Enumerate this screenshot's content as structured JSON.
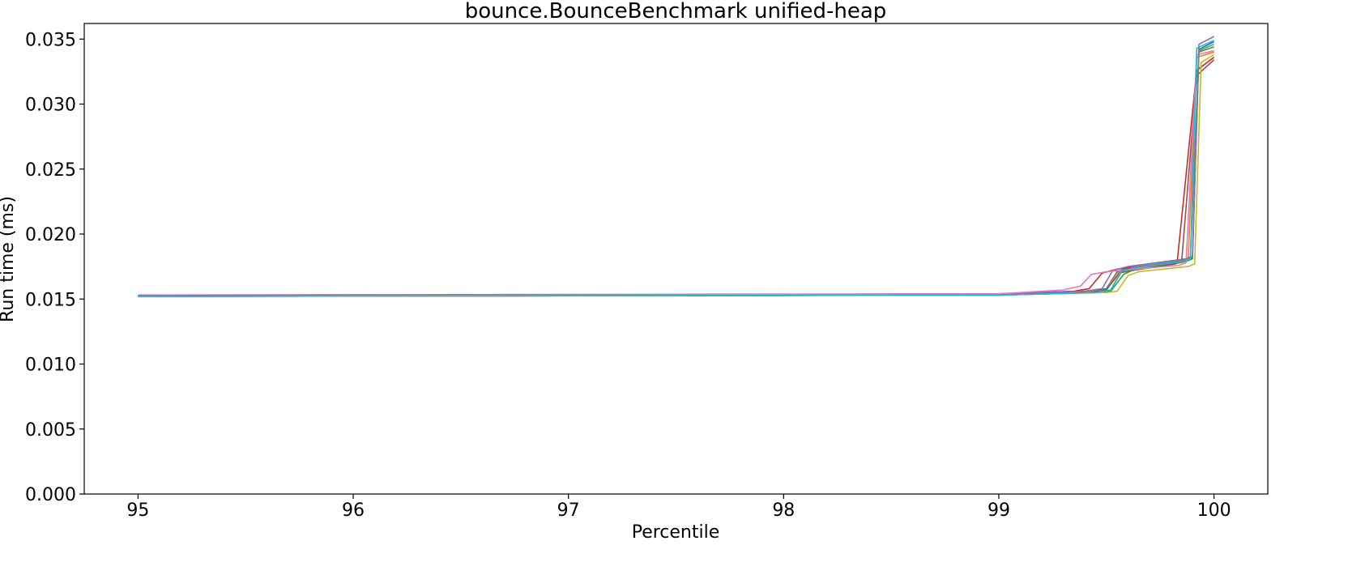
{
  "chart_data": {
    "type": "line",
    "title": "bounce.BounceBenchmark unified-heap",
    "xlabel": "Percentile",
    "ylabel": "Run time (ms)",
    "xlim": [
      94.75,
      100.25
    ],
    "ylim": [
      0.0,
      0.0362
    ],
    "xticks": [
      95,
      96,
      97,
      98,
      99,
      100
    ],
    "xtick_labels": [
      "95",
      "96",
      "97",
      "98",
      "99",
      "100"
    ],
    "yticks": [
      0.0,
      0.005,
      0.01,
      0.015,
      0.02,
      0.025,
      0.03,
      0.035
    ],
    "ytick_labels": [
      "0.000",
      "0.005",
      "0.010",
      "0.015",
      "0.020",
      "0.025",
      "0.030",
      "0.035"
    ],
    "grid": false,
    "legend": "none",
    "colors": [
      "#1f77b4",
      "#ff7f0e",
      "#2ca02c",
      "#d62728",
      "#9467bd",
      "#8c564b",
      "#e377c2",
      "#7f7f7f",
      "#bcbd22",
      "#17becf"
    ],
    "series": [
      {
        "color": "#1f77b4",
        "x": [
          95,
          99.0,
          99.4,
          99.5,
          99.55,
          99.6,
          99.88,
          99.9,
          99.93,
          100
        ],
        "y": [
          0.0152,
          0.0154,
          0.0156,
          0.0158,
          0.0171,
          0.0174,
          0.018,
          0.0182,
          0.0342,
          0.0348
        ]
      },
      {
        "color": "#ff7f0e",
        "x": [
          95,
          99.0,
          99.4,
          99.5,
          99.55,
          99.6,
          99.85,
          99.88,
          99.92,
          100
        ],
        "y": [
          0.0152,
          0.0153,
          0.0155,
          0.0157,
          0.017,
          0.0173,
          0.0178,
          0.018,
          0.0336,
          0.034
        ]
      },
      {
        "color": "#2ca02c",
        "x": [
          95,
          99.0,
          99.45,
          99.52,
          99.58,
          99.62,
          99.87,
          99.9,
          99.93,
          100
        ],
        "y": [
          0.0152,
          0.0153,
          0.0155,
          0.0156,
          0.0169,
          0.0172,
          0.0179,
          0.0181,
          0.034,
          0.0344
        ]
      },
      {
        "color": "#d62728",
        "x": [
          95,
          99.0,
          99.35,
          99.42,
          99.48,
          99.55,
          99.8,
          99.83,
          99.92,
          100
        ],
        "y": [
          0.0152,
          0.0154,
          0.0156,
          0.0158,
          0.017,
          0.0173,
          0.0178,
          0.018,
          0.0326,
          0.0336
        ]
      },
      {
        "color": "#9467bd",
        "x": [
          95,
          99.0,
          99.4,
          99.48,
          99.53,
          99.6,
          99.87,
          99.9,
          99.93,
          100
        ],
        "y": [
          0.0153,
          0.0154,
          0.0156,
          0.0158,
          0.0172,
          0.0175,
          0.0181,
          0.0183,
          0.0346,
          0.0352
        ]
      },
      {
        "color": "#8c564b",
        "x": [
          95,
          99.0,
          99.42,
          99.5,
          99.56,
          99.62,
          99.82,
          99.85,
          99.92,
          100
        ],
        "y": [
          0.0152,
          0.0153,
          0.0155,
          0.0157,
          0.017,
          0.0172,
          0.0177,
          0.0179,
          0.0322,
          0.0334
        ]
      },
      {
        "color": "#e377c2",
        "x": [
          95,
          99.0,
          99.3,
          99.38,
          99.43,
          99.5,
          99.84,
          99.87,
          99.92,
          100
        ],
        "y": [
          0.0152,
          0.0154,
          0.0157,
          0.016,
          0.0169,
          0.0171,
          0.0176,
          0.0178,
          0.0338,
          0.0341
        ]
      },
      {
        "color": "#7f7f7f",
        "x": [
          95,
          99.0,
          99.45,
          99.52,
          99.57,
          99.62,
          99.86,
          99.89,
          99.93,
          100
        ],
        "y": [
          0.0152,
          0.0153,
          0.0155,
          0.0157,
          0.0171,
          0.0174,
          0.018,
          0.0182,
          0.0341,
          0.0346
        ]
      },
      {
        "color": "#bcbd22",
        "x": [
          95,
          99.0,
          99.5,
          99.55,
          99.6,
          99.65,
          99.88,
          99.91,
          99.94,
          100
        ],
        "y": [
          0.0152,
          0.0153,
          0.0155,
          0.0156,
          0.0168,
          0.0171,
          0.0175,
          0.0177,
          0.0332,
          0.0338
        ]
      },
      {
        "color": "#17becf",
        "x": [
          95,
          99.0,
          99.45,
          99.52,
          99.57,
          99.63,
          99.86,
          99.89,
          99.92,
          100
        ],
        "y": [
          0.0152,
          0.0153,
          0.0155,
          0.0157,
          0.0172,
          0.0174,
          0.0179,
          0.0181,
          0.0343,
          0.0349
        ]
      }
    ]
  }
}
